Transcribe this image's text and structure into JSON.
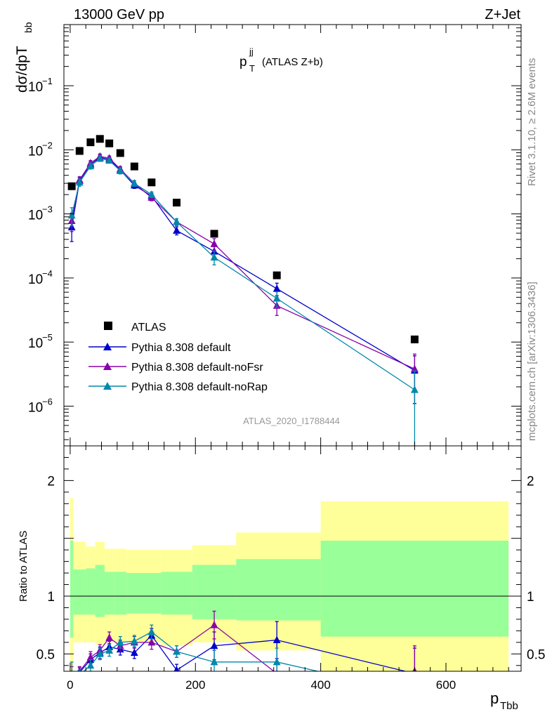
{
  "header": {
    "left": "13000 GeV pp",
    "right": "Z+Jet"
  },
  "side_labels": {
    "rivet": "Rivet 3.1.10, ≥ 2.6M events",
    "mcplots": "mcplots.cern.ch [arXiv:1306.3436]"
  },
  "colors": {
    "data": "#000000",
    "default": "#0000cc",
    "noFsr": "#8800aa",
    "noRap": "#0088aa",
    "band_outer": "#ffff99",
    "band_inner": "#99ff99"
  },
  "chart_data": [
    {
      "type": "line",
      "title": "p_T^jj (ATLAS Z+b)",
      "title_parts": {
        "main": "p",
        "sub": "T",
        "sup": "jj",
        "rest": "(ATLAS Z+b)"
      },
      "ylabel": "dσ/dpT_bb",
      "ylabel_parts": {
        "main": "dσ/dpT",
        "sub": "bb"
      },
      "yscale": "log",
      "xlim": [
        -10,
        720
      ],
      "ylim": [
        2.4e-07,
        0.9
      ],
      "x_ticks": [
        0,
        200,
        400,
        600
      ],
      "y_ticks": [
        {
          "value": 1e-06,
          "base": "10",
          "exp": "−6"
        },
        {
          "value": 1e-05,
          "base": "10",
          "exp": "−5"
        },
        {
          "value": 0.0001,
          "base": "10",
          "exp": "−4"
        },
        {
          "value": 0.001,
          "base": "10",
          "exp": "−3"
        },
        {
          "value": 0.01,
          "base": "10",
          "exp": "−2"
        },
        {
          "value": 0.1,
          "base": "10",
          "exp": "−1"
        }
      ],
      "watermark": "ATLAS_2020_I1788444",
      "legend_position": "lower-left",
      "data_series": {
        "name": "ATLAS",
        "x": [
          2.5,
          15,
          32.5,
          47.5,
          62.5,
          80,
          102.5,
          130,
          170,
          230,
          330,
          550
        ],
        "y": [
          0.0027,
          0.0096,
          0.0131,
          0.0148,
          0.0126,
          0.0089,
          0.0055,
          0.0031,
          0.0015,
          0.00049,
          0.00011,
          1.1e-05
        ],
        "x_err": [
          [
            0,
            5
          ],
          [
            5,
            25
          ],
          [
            25,
            40
          ],
          [
            40,
            55
          ],
          [
            55,
            70
          ],
          [
            70,
            90
          ],
          [
            90,
            115
          ],
          [
            115,
            145
          ],
          [
            145,
            195
          ],
          [
            195,
            265
          ],
          [
            265,
            400
          ],
          [
            400,
            700
          ]
        ]
      },
      "series": [
        {
          "name": "Pythia 8.308 default",
          "color_key": "default",
          "x": [
            2.5,
            15,
            32.5,
            47.5,
            62.5,
            80,
            102.5,
            130,
            170,
            230,
            330,
            550
          ],
          "y": [
            0.00062,
            0.0033,
            0.0059,
            0.0076,
            0.0071,
            0.0048,
            0.0028,
            0.0019,
            0.00055,
            0.00026,
            6.8e-05,
            3.6e-06
          ],
          "err": [
            0.00025,
            0.0004,
            0.0006,
            0.0007,
            0.0006,
            0.0005,
            0.0003,
            0.0002,
            8e-05,
            6e-05,
            1.5e-05,
            2.5e-06
          ]
        },
        {
          "name": "Pythia 8.308 default-noFsr",
          "color_key": "noFsr",
          "x": [
            2.5,
            15,
            32.5,
            47.5,
            62.5,
            80,
            102.5,
            130,
            170,
            230,
            330,
            550
          ],
          "y": [
            0.00078,
            0.0034,
            0.0062,
            0.0079,
            0.0074,
            0.005,
            0.003,
            0.0018,
            0.00075,
            0.00034,
            3.7e-05,
            3.8e-06
          ],
          "err": [
            0.00025,
            0.0004,
            0.0006,
            0.0007,
            0.0006,
            0.0005,
            0.0003,
            0.0002,
            9e-05,
            7e-05,
            1.1e-05,
            2.7e-06
          ]
        },
        {
          "name": "Pythia 8.308 default-noRap",
          "color_key": "noRap",
          "x": [
            2.5,
            15,
            32.5,
            47.5,
            62.5,
            80,
            102.5,
            130,
            170,
            230,
            330,
            550
          ],
          "y": [
            0.00095,
            0.0031,
            0.0056,
            0.0073,
            0.0068,
            0.0047,
            0.003,
            0.002,
            0.00075,
            0.00021,
            4.8e-05,
            1.8e-06
          ],
          "err": [
            0.0003,
            0.0004,
            0.0006,
            0.0007,
            0.0006,
            0.0005,
            0.0003,
            0.0002,
            9e-05,
            5e-05,
            1.3e-05,
            1.75e-06
          ]
        }
      ]
    },
    {
      "type": "line",
      "ylabel": "Ratio to ATLAS",
      "xlabel": "p_Tbb",
      "xlabel_parts": {
        "main": "p",
        "sub": "Tbb"
      },
      "xlim": [
        -10,
        720
      ],
      "ylim": [
        0.35,
        2.3
      ],
      "x_ticks": [
        0,
        200,
        400,
        600
      ],
      "y_ticks": [
        0.5,
        1,
        2
      ],
      "y_tick_labels": [
        "0.5",
        "1",
        "2"
      ],
      "reference_line": 1,
      "bands": {
        "x_edges": [
          0,
          5,
          25,
          40,
          55,
          70,
          90,
          115,
          145,
          195,
          265,
          400,
          700
        ],
        "outer_lo": [
          0.1,
          0.6,
          0.6,
          0.58,
          0.6,
          0.6,
          0.6,
          0.6,
          0.57,
          0.6,
          0.53,
          0.1
        ],
        "outer_hi": [
          1.85,
          1.47,
          1.43,
          1.47,
          1.41,
          1.41,
          1.4,
          1.4,
          1.4,
          1.44,
          1.55,
          1.82
        ],
        "inner_lo": [
          0.64,
          0.84,
          0.84,
          0.82,
          0.84,
          0.84,
          0.85,
          0.85,
          0.84,
          0.8,
          0.79,
          0.65
        ],
        "inner_hi": [
          1.48,
          1.23,
          1.24,
          1.27,
          1.21,
          1.21,
          1.2,
          1.2,
          1.21,
          1.27,
          1.32,
          1.48
        ]
      },
      "series": [
        {
          "name": "Pythia 8.308 default",
          "color_key": "default",
          "x": [
            2.5,
            15,
            32.5,
            47.5,
            62.5,
            80,
            102.5,
            130,
            170,
            230,
            330,
            550
          ],
          "y": [
            0.23,
            0.34,
            0.45,
            0.51,
            0.56,
            0.54,
            0.51,
            0.66,
            0.36,
            0.57,
            0.62,
            0.33
          ],
          "err": [
            0.1,
            0.04,
            0.05,
            0.05,
            0.05,
            0.05,
            0.05,
            0.06,
            0.05,
            0.12,
            0.16,
            0.22
          ]
        },
        {
          "name": "Pythia 8.308 default-noFsr",
          "color_key": "noFsr",
          "x": [
            2.5,
            15,
            32.5,
            47.5,
            62.5,
            80,
            102.5,
            130,
            170,
            230,
            330,
            550
          ],
          "y": [
            0.29,
            0.35,
            0.47,
            0.53,
            0.64,
            0.57,
            0.6,
            0.6,
            0.52,
            0.75,
            0.33,
            0.35
          ],
          "err": [
            0.1,
            0.04,
            0.05,
            0.05,
            0.05,
            0.05,
            0.05,
            0.06,
            0.05,
            0.12,
            0.1,
            0.22
          ]
        },
        {
          "name": "Pythia 8.308 default-noRap",
          "color_key": "noRap",
          "x": [
            2.5,
            15,
            32.5,
            47.5,
            62.5,
            80,
            102.5,
            130,
            170,
            230,
            330,
            550
          ],
          "y": [
            0.33,
            0.32,
            0.4,
            0.5,
            0.53,
            0.6,
            0.61,
            0.69,
            0.52,
            0.43,
            0.43,
            0.16
          ],
          "err": [
            0.1,
            0.04,
            0.05,
            0.05,
            0.05,
            0.05,
            0.05,
            0.06,
            0.05,
            0.1,
            0.12,
            0.16
          ]
        }
      ]
    }
  ]
}
